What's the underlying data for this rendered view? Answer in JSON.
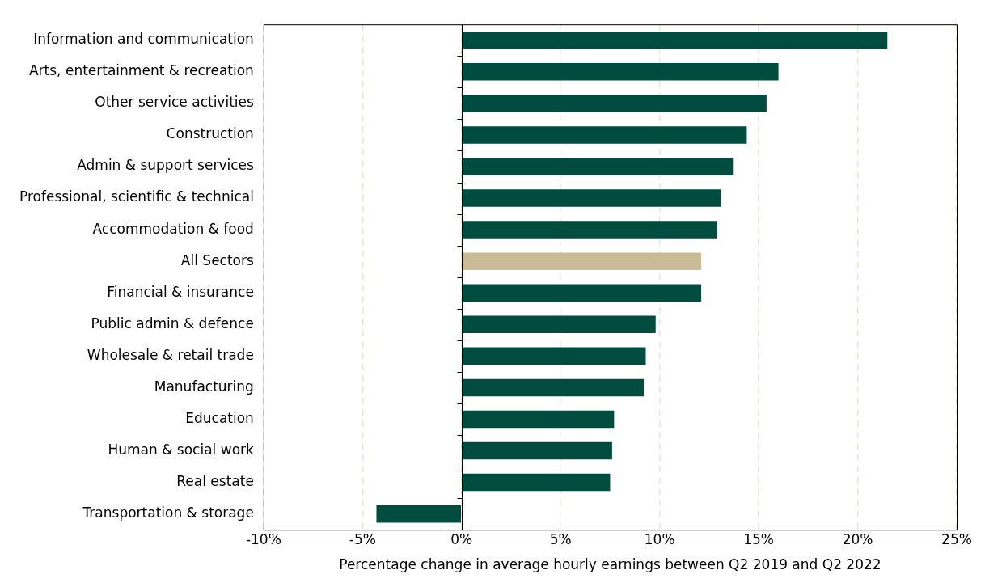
{
  "chart_data": {
    "type": "bar",
    "orientation": "horizontal",
    "xlabel": "Percentage change in average hourly earnings between Q2 2019 and Q2 2022",
    "categories": [
      "Information and communication",
      "Arts, entertainment & recreation",
      "Other service activities",
      "Construction",
      "Admin & support services",
      "Professional, scientific & technical",
      "Accommodation & food",
      "All Sectors",
      "Financial & insurance",
      "Public admin & defence",
      "Wholesale & retail trade",
      "Manufacturing",
      "Education",
      "Human & social work",
      "Real estate",
      "Transportation & storage"
    ],
    "values": [
      21.5,
      16.0,
      15.4,
      14.4,
      13.7,
      13.1,
      12.9,
      12.1,
      12.1,
      9.8,
      9.3,
      9.2,
      7.7,
      7.6,
      7.5,
      -4.3
    ],
    "colors": [
      "#004d40",
      "#004d40",
      "#004d40",
      "#004d40",
      "#004d40",
      "#004d40",
      "#004d40",
      "#c8bb96",
      "#004d40",
      "#004d40",
      "#004d40",
      "#004d40",
      "#004d40",
      "#004d40",
      "#004d40",
      "#004d40"
    ],
    "xlim": [
      -10,
      25
    ],
    "xticks": [
      {
        "value": -10,
        "label": "-10%"
      },
      {
        "value": -5,
        "label": "-5%"
      },
      {
        "value": 0,
        "label": "0%"
      },
      {
        "value": 5,
        "label": "5%"
      },
      {
        "value": 10,
        "label": "10%"
      },
      {
        "value": 15,
        "label": "15%"
      },
      {
        "value": 20,
        "label": "20%"
      },
      {
        "value": 25,
        "label": "25%"
      }
    ],
    "grid": "x",
    "legend": false
  }
}
